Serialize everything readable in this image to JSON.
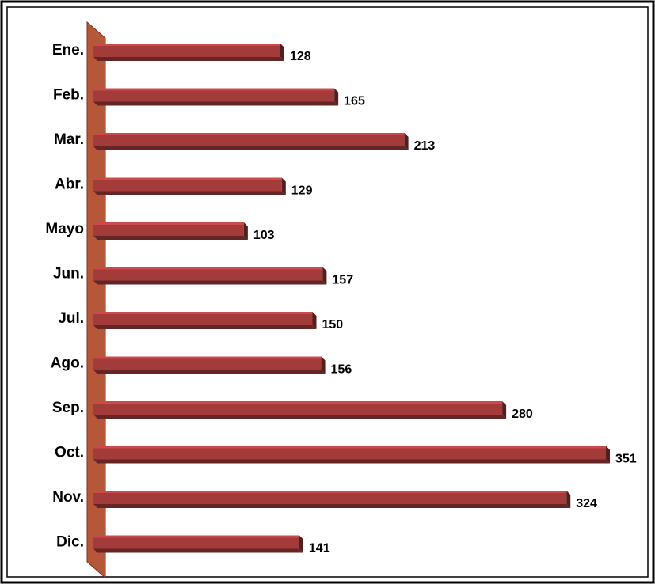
{
  "chart_data": {
    "type": "bar",
    "orientation": "horizontal",
    "categories": [
      "Ene.",
      "Feb.",
      "Mar.",
      "Abr.",
      "Mayo",
      "Jun.",
      "Jul.",
      "Ago.",
      "Sep.",
      "Oct.",
      "Nov.",
      "Dic."
    ],
    "values": [
      128,
      165,
      213,
      129,
      103,
      157,
      150,
      156,
      280,
      351,
      324,
      141
    ],
    "color": "#a33b3b"
  }
}
